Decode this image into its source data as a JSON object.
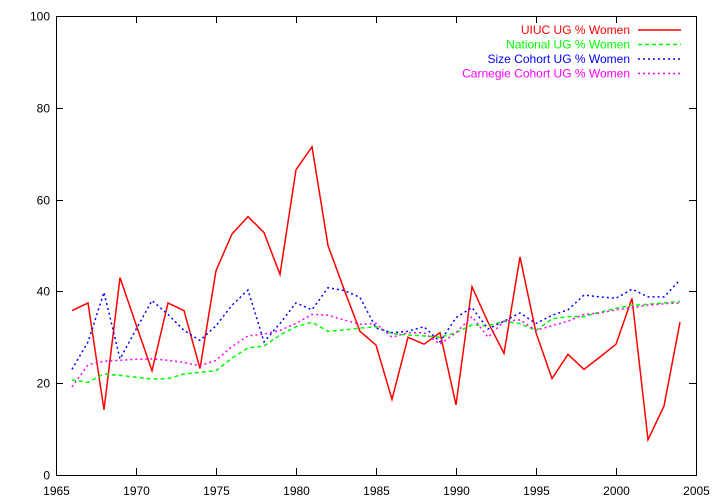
{
  "chart_data": {
    "type": "line",
    "title": "",
    "xlabel": "",
    "ylabel": "",
    "xlim": [
      1965,
      2005
    ],
    "ylim": [
      0,
      100
    ],
    "xticks": [
      1965,
      1970,
      1975,
      1980,
      1985,
      1990,
      1995,
      2000,
      2005
    ],
    "yticks": [
      0,
      20,
      40,
      60,
      80,
      100
    ],
    "grid": false,
    "legend_position": "top-right",
    "x": [
      1966,
      1967,
      1968,
      1969,
      1970,
      1971,
      1972,
      1973,
      1974,
      1975,
      1976,
      1977,
      1978,
      1979,
      1980,
      1981,
      1982,
      1983,
      1984,
      1985,
      1986,
      1987,
      1988,
      1989,
      1990,
      1991,
      1992,
      1993,
      1994,
      1995,
      1996,
      1997,
      1998,
      1999,
      2000,
      2001,
      2002,
      2003,
      2004
    ],
    "series": [
      {
        "name": "UIUC UG % Women",
        "color": "#ff0000",
        "dash": "solid",
        "values": [
          35.8,
          37.5,
          14.2,
          43.0,
          32.8,
          22.7,
          37.5,
          35.8,
          23.2,
          44.5,
          52.5,
          56.3,
          52.8,
          43.7,
          66.5,
          71.5,
          50.0,
          40.5,
          31.3,
          28.3,
          16.5,
          30.0,
          28.5,
          31.0,
          15.3,
          41.0,
          33.3,
          26.5,
          47.5,
          31.0,
          21.0,
          26.3,
          23.0,
          25.7,
          28.5,
          38.5,
          7.7,
          15.0,
          33.3
        ]
      },
      {
        "name": "National UG % Women",
        "color": "#00ff00",
        "dash": "dashed",
        "values": [
          20.7,
          20.2,
          22.0,
          21.7,
          21.3,
          20.9,
          21.0,
          22.0,
          22.4,
          22.7,
          25.5,
          27.7,
          28.1,
          30.5,
          32.3,
          33.3,
          31.3,
          31.6,
          32.0,
          32.3,
          30.8,
          30.5,
          30.3,
          30.0,
          31.0,
          32.7,
          32.5,
          33.5,
          33.0,
          31.5,
          34.0,
          34.5,
          34.5,
          35.5,
          36.3,
          37.0,
          37.2,
          37.5,
          37.8
        ]
      },
      {
        "name": "Size Cohort UG % Women",
        "color": "#0000ff",
        "dash": "dotted",
        "values": [
          23.0,
          29.0,
          39.8,
          25.3,
          31.7,
          38.0,
          35.0,
          31.5,
          29.3,
          32.5,
          37.0,
          40.3,
          29.0,
          33.0,
          37.5,
          36.0,
          40.8,
          40.2,
          38.7,
          32.0,
          31.0,
          31.3,
          32.3,
          29.0,
          34.3,
          36.5,
          31.8,
          33.5,
          35.3,
          33.0,
          34.8,
          36.0,
          39.2,
          38.8,
          38.5,
          40.5,
          38.8,
          38.8,
          42.5
        ]
      },
      {
        "name": "Carnegie Cohort UG % Women",
        "color": "#ff00ff",
        "dash": "dotted",
        "values": [
          19.2,
          24.0,
          24.8,
          25.0,
          25.2,
          25.3,
          25.0,
          24.5,
          23.8,
          25.0,
          28.0,
          30.3,
          30.7,
          31.5,
          33.0,
          35.0,
          34.8,
          33.8,
          32.8,
          33.0,
          30.0,
          31.0,
          31.0,
          28.5,
          31.0,
          34.5,
          30.0,
          33.5,
          33.8,
          31.5,
          32.5,
          33.5,
          35.0,
          35.3,
          36.0,
          36.5,
          37.0,
          37.3,
          37.5
        ]
      }
    ]
  }
}
